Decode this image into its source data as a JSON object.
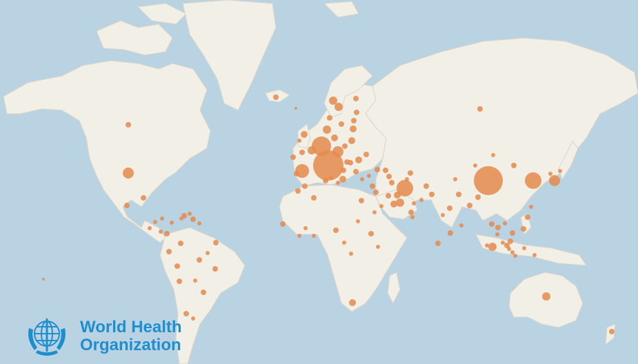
{
  "logo": {
    "line1": "World Health",
    "line2": "Organization",
    "color": "#1f8ecf"
  },
  "colors": {
    "ocean": "#b9d3e3",
    "land": "#f2efe6",
    "coast": "#d9d5c8",
    "bubble": "#e58a4c"
  },
  "legend": null
}
